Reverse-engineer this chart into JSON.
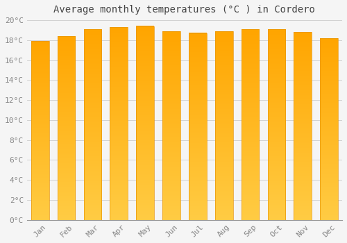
{
  "title": "Average monthly temperatures (°C ) in Cordero",
  "months": [
    "Jan",
    "Feb",
    "Mar",
    "Apr",
    "May",
    "Jun",
    "Jul",
    "Aug",
    "Sep",
    "Oct",
    "Nov",
    "Dec"
  ],
  "values": [
    17.9,
    18.4,
    19.1,
    19.3,
    19.4,
    18.9,
    18.7,
    18.9,
    19.1,
    19.1,
    18.8,
    18.2
  ],
  "bar_color_bottom": "#FFCC44",
  "bar_color_top": "#FFA500",
  "bar_edge_color": "#E8960A",
  "background_color": "#F5F5F5",
  "plot_bg_color": "#F5F5F5",
  "grid_color": "#CCCCCC",
  "ylim": [
    0,
    20
  ],
  "ytick_step": 2,
  "title_fontsize": 10,
  "tick_fontsize": 8,
  "tick_color": "#888888",
  "title_color": "#444444",
  "bar_width": 0.68
}
